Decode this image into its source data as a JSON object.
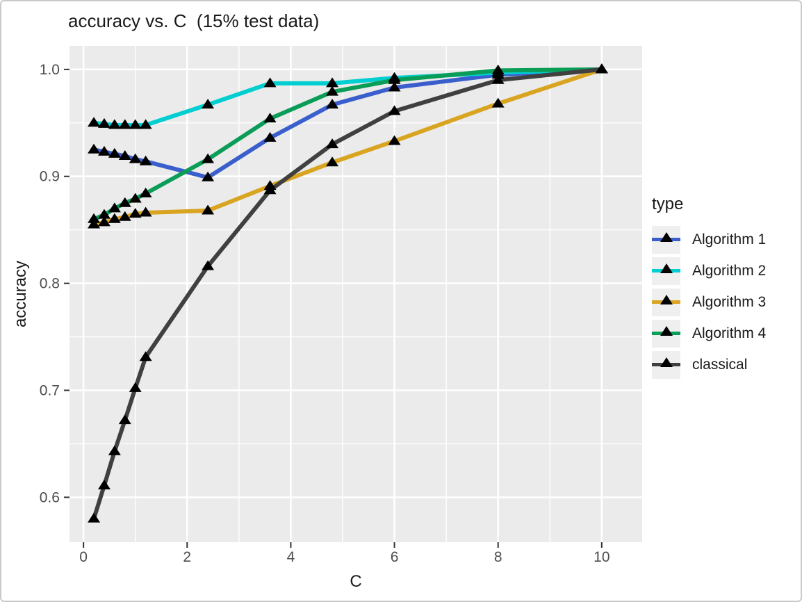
{
  "figure": {
    "title": "accuracy vs. C  (15% test data)",
    "xlabel": "C",
    "ylabel": "accuracy"
  },
  "legend": {
    "title": "type",
    "position": "right"
  },
  "colors": {
    "panel_bg": "#ebebeb",
    "grid": "#ffffff",
    "tick": "#333333",
    "axis_text": "#4d4d4d",
    "title_text": "#1a1a1a",
    "marker": "#000000",
    "legend_key_bg": "#efefef",
    "frame_border": "#c9c9c9"
  },
  "chart_data": {
    "type": "line",
    "title": "accuracy vs. C  (15% test data)",
    "xlabel": "C",
    "ylabel": "accuracy",
    "marker": "triangle-up",
    "grid": true,
    "legend_position": "right",
    "x": [
      0.2,
      0.4,
      0.6,
      0.8,
      1.0,
      1.2,
      2.4,
      3.6,
      4.8,
      6.0,
      8.0,
      10.0
    ],
    "series": [
      {
        "name": "Algorithm 1",
        "color": "#3a5fcd",
        "values": [
          0.925,
          0.923,
          0.921,
          0.919,
          0.916,
          0.914,
          0.899,
          0.936,
          0.967,
          0.983,
          0.995,
          1.0
        ]
      },
      {
        "name": "Algorithm 2",
        "color": "#00ced1",
        "values": [
          0.95,
          0.949,
          0.948,
          0.948,
          0.948,
          0.948,
          0.967,
          0.987,
          0.987,
          0.992,
          0.997,
          1.0
        ]
      },
      {
        "name": "Algorithm 3",
        "color": "#d9a420",
        "values": [
          0.855,
          0.857,
          0.86,
          0.862,
          0.865,
          0.866,
          0.868,
          0.891,
          0.913,
          0.933,
          0.968,
          1.0
        ]
      },
      {
        "name": "Algorithm 4",
        "color": "#0a9d58",
        "values": [
          0.86,
          0.864,
          0.87,
          0.875,
          0.879,
          0.884,
          0.916,
          0.954,
          0.979,
          0.99,
          0.999,
          1.0
        ]
      },
      {
        "name": "classical",
        "color": "#404040",
        "values": [
          0.58,
          0.611,
          0.643,
          0.672,
          0.702,
          0.731,
          0.816,
          0.887,
          0.93,
          0.961,
          0.99,
          1.0
        ]
      }
    ],
    "x_ticks": [
      0,
      2,
      4,
      6,
      8,
      10
    ],
    "x_tick_labels": [
      "0",
      "2",
      "4",
      "6",
      "8",
      "10"
    ],
    "x_minor_ticks": [
      1,
      3,
      5,
      7,
      9
    ],
    "y_ticks": [
      0.6,
      0.7,
      0.8,
      0.9,
      1.0
    ],
    "y_tick_labels": [
      "0.6",
      "0.7",
      "0.8",
      "0.9",
      "1.0"
    ],
    "y_minor_ticks": [
      0.65,
      0.75,
      0.85,
      0.95
    ],
    "xlim": [
      -0.27,
      10.78
    ],
    "ylim": [
      0.558,
      1.022
    ]
  }
}
